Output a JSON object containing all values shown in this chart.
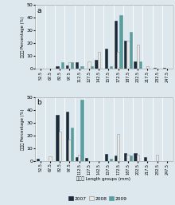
{
  "categories": [
    "52.5",
    "67.5",
    "82.5",
    "97.5",
    "112.5",
    "127.5",
    "142.5",
    "157.5",
    "172.5",
    "187.5",
    "202.5",
    "217.5",
    "232.5",
    "247.5"
  ],
  "panel_a": {
    "2007": [
      0,
      0,
      2,
      2.5,
      5,
      0,
      7,
      16,
      38,
      22,
      6,
      0,
      0.5,
      0.5
    ],
    "2008": [
      0,
      0,
      0,
      5,
      0,
      6,
      13,
      0,
      13,
      22,
      19,
      2,
      0,
      0
    ],
    "2009": [
      0,
      0,
      5,
      5,
      2,
      2,
      0,
      2,
      42,
      29,
      6,
      0,
      0,
      0
    ]
  },
  "panel_b": {
    "2007": [
      1.5,
      0,
      36,
      39,
      3,
      2.5,
      0,
      5.5,
      4,
      6,
      6,
      3,
      0,
      0
    ],
    "2008": [
      0,
      3.5,
      23,
      17,
      5,
      0,
      0,
      0,
      21,
      5,
      5,
      0,
      5,
      0
    ],
    "2009": [
      0,
      0,
      0,
      26,
      48,
      0,
      0,
      2,
      0,
      4.5,
      0,
      0,
      0,
      0
    ]
  },
  "color_2007": "#1c2b3a",
  "color_2008": "#e8e8e8",
  "color_2009": "#5a9ea0",
  "edge_2007": "#1c2b3a",
  "edge_2008": "#999999",
  "edge_2009": "#5a9ea0",
  "bg_color": "#dde8ee",
  "plot_bg": "#dde8ee",
  "ylim": [
    0,
    50
  ],
  "yticks": [
    0,
    10,
    20,
    30,
    40,
    50
  ],
  "ylabel_cn": "百分数 Percentage (%)",
  "xlabel_cn": "体长组 Length groups (mm)",
  "panel_labels": [
    "a",
    "b"
  ]
}
